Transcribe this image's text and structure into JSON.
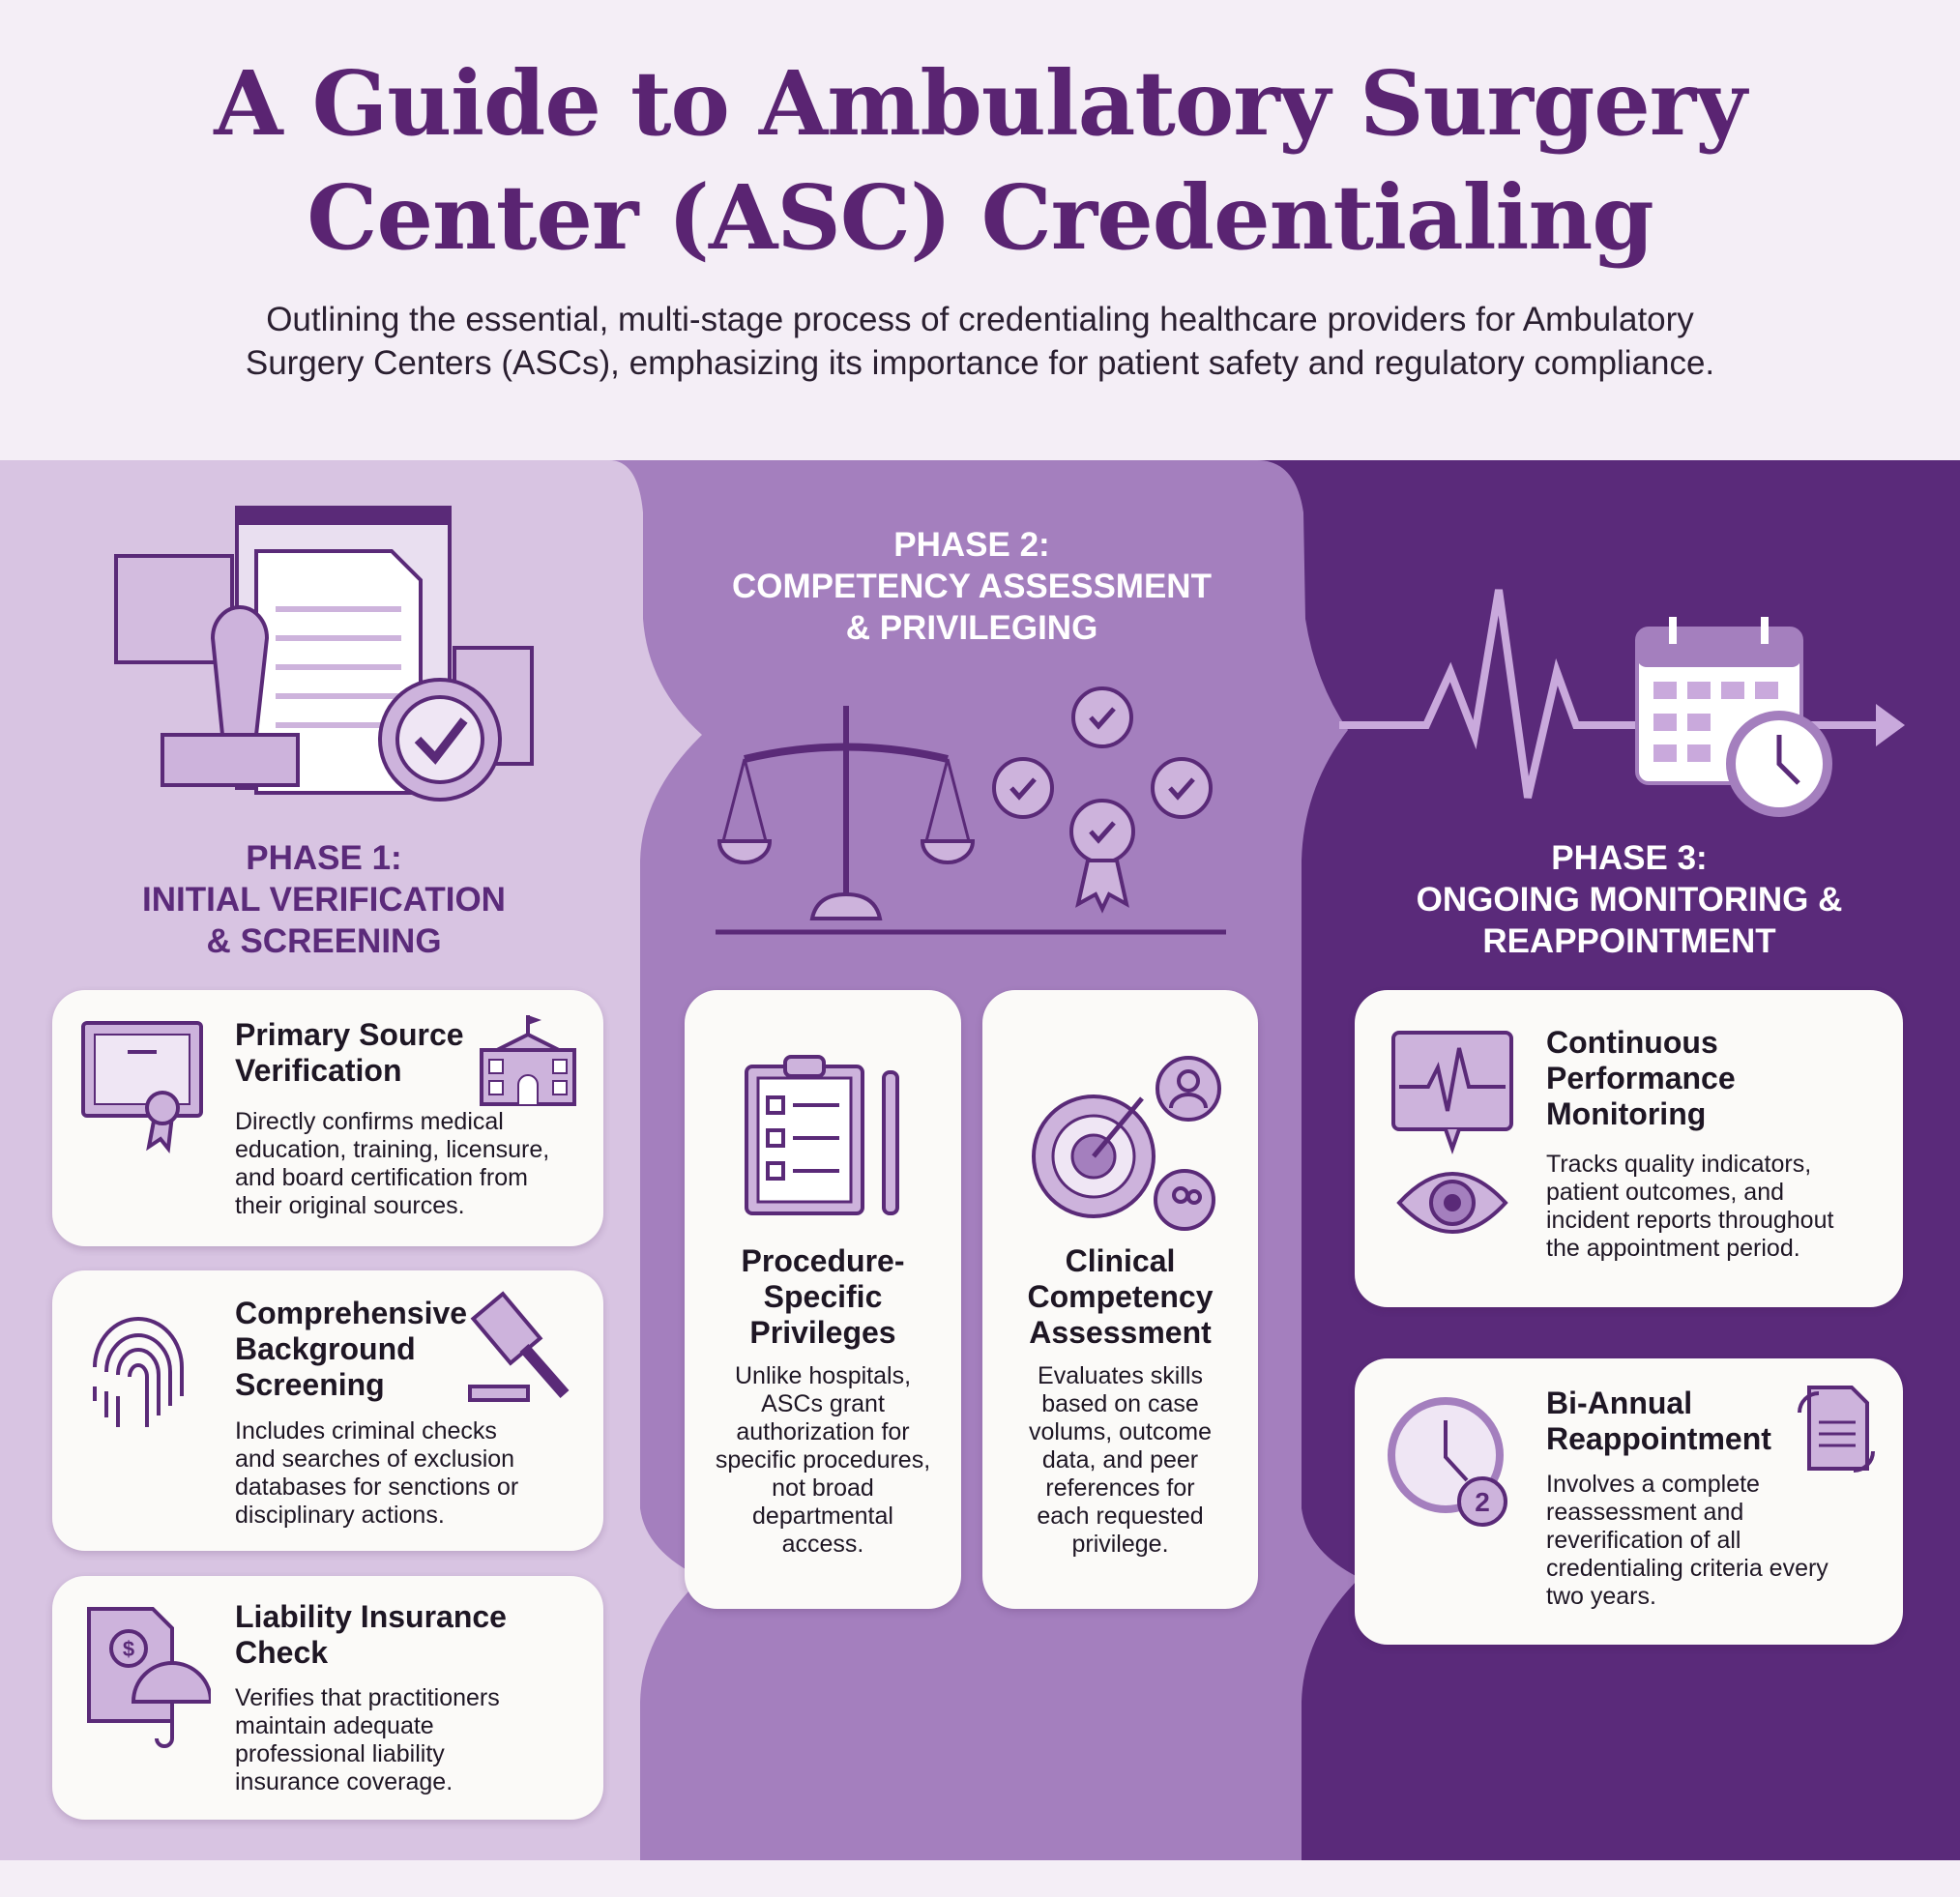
{
  "header": {
    "title_line1": "A Guide to Ambulatory Surgery",
    "title_line2": "Center (ASC) Credentialing",
    "subtitle_line1": "Outlining the essential, multi-stage process of credentialing healthcare providers for Ambulatory",
    "subtitle_line2": "Surgery Centers (ASCs), emphasizing its importance for patient safety and regulatory compliance."
  },
  "colors": {
    "title": "#5a2472",
    "phase1_bg": "#d8c4e2",
    "phase2_bg": "#a47fbe",
    "phase3_bg": "#5a2a7a",
    "card_bg": "#fbfaf8"
  },
  "phases": [
    {
      "title": [
        "PHASE 1:",
        "INITIAL VERIFICATION",
        "& SCREENING"
      ],
      "icon": "documents-stamp-badge-icon",
      "cards": [
        {
          "heading": [
            "Primary Source",
            "Verification"
          ],
          "body": [
            "Directly confirms medical",
            "education, training, licensure,",
            "and board certification from",
            "their original sources."
          ],
          "icons": [
            "diploma-icon",
            "school-building-icon"
          ]
        },
        {
          "heading": [
            "Comprehensive",
            "Background",
            "Screening"
          ],
          "body": [
            "Includes criminal checks",
            "and searches of exclusion",
            "databases for senctions or",
            "disciplinary actions."
          ],
          "icons": [
            "fingerprint-icon",
            "gavel-icon"
          ]
        },
        {
          "heading": [
            "Liability Insurance",
            "Check"
          ],
          "body": [
            "Verifies that practitioners",
            "maintain adequate",
            "professional liability",
            "insurance coverage."
          ],
          "icons": [
            "insurance-document-umbrella-icon"
          ]
        }
      ]
    },
    {
      "title": [
        "PHASE 2:",
        "COMPETENCY ASSESSMENT",
        "& PRIVILEGING"
      ],
      "icon": "scales-awards-icon",
      "cards": [
        {
          "heading": [
            "Procedure-",
            "Specific",
            "Privileges"
          ],
          "body": [
            "Unlike hospitals,",
            "ASCs grant",
            "authorization for",
            "specific procedures,",
            "not broad",
            "departmental",
            "access."
          ],
          "icons": [
            "clipboard-checklist-icon",
            "scalpel-icon"
          ]
        },
        {
          "heading": [
            "Clinical",
            "Competency",
            "Assessment"
          ],
          "body": [
            "Evaluates skills",
            "based on case",
            "volums, outcome",
            "data, and peer",
            "references for",
            "each requested",
            "privilege."
          ],
          "icons": [
            "target-arrow-icon",
            "user-bubble-icon",
            "group-bubble-icon"
          ]
        }
      ]
    },
    {
      "title": [
        "PHASE 3:",
        "ONGOING MONITORING &",
        "REAPPOINTMENT"
      ],
      "icon": "heartbeat-calendar-clock-icon",
      "cards": [
        {
          "heading": [
            "Continuous",
            "Performance",
            "Monitoring"
          ],
          "body": [
            "Tracks quality indicators,",
            "patient outcomes, and",
            "incident reports throughout",
            "the appointment period."
          ],
          "icons": [
            "monitor-heartbeat-icon",
            "eye-icon"
          ]
        },
        {
          "heading": [
            "Bi-Annual",
            "Reappointment"
          ],
          "body": [
            "Involves a complete",
            "reassessment and",
            "reverification of all",
            "credentialing criteria every",
            "two years."
          ],
          "icons": [
            "clock-cycle-2-icon",
            "document-refresh-icon"
          ],
          "badge": "2"
        }
      ]
    }
  ]
}
